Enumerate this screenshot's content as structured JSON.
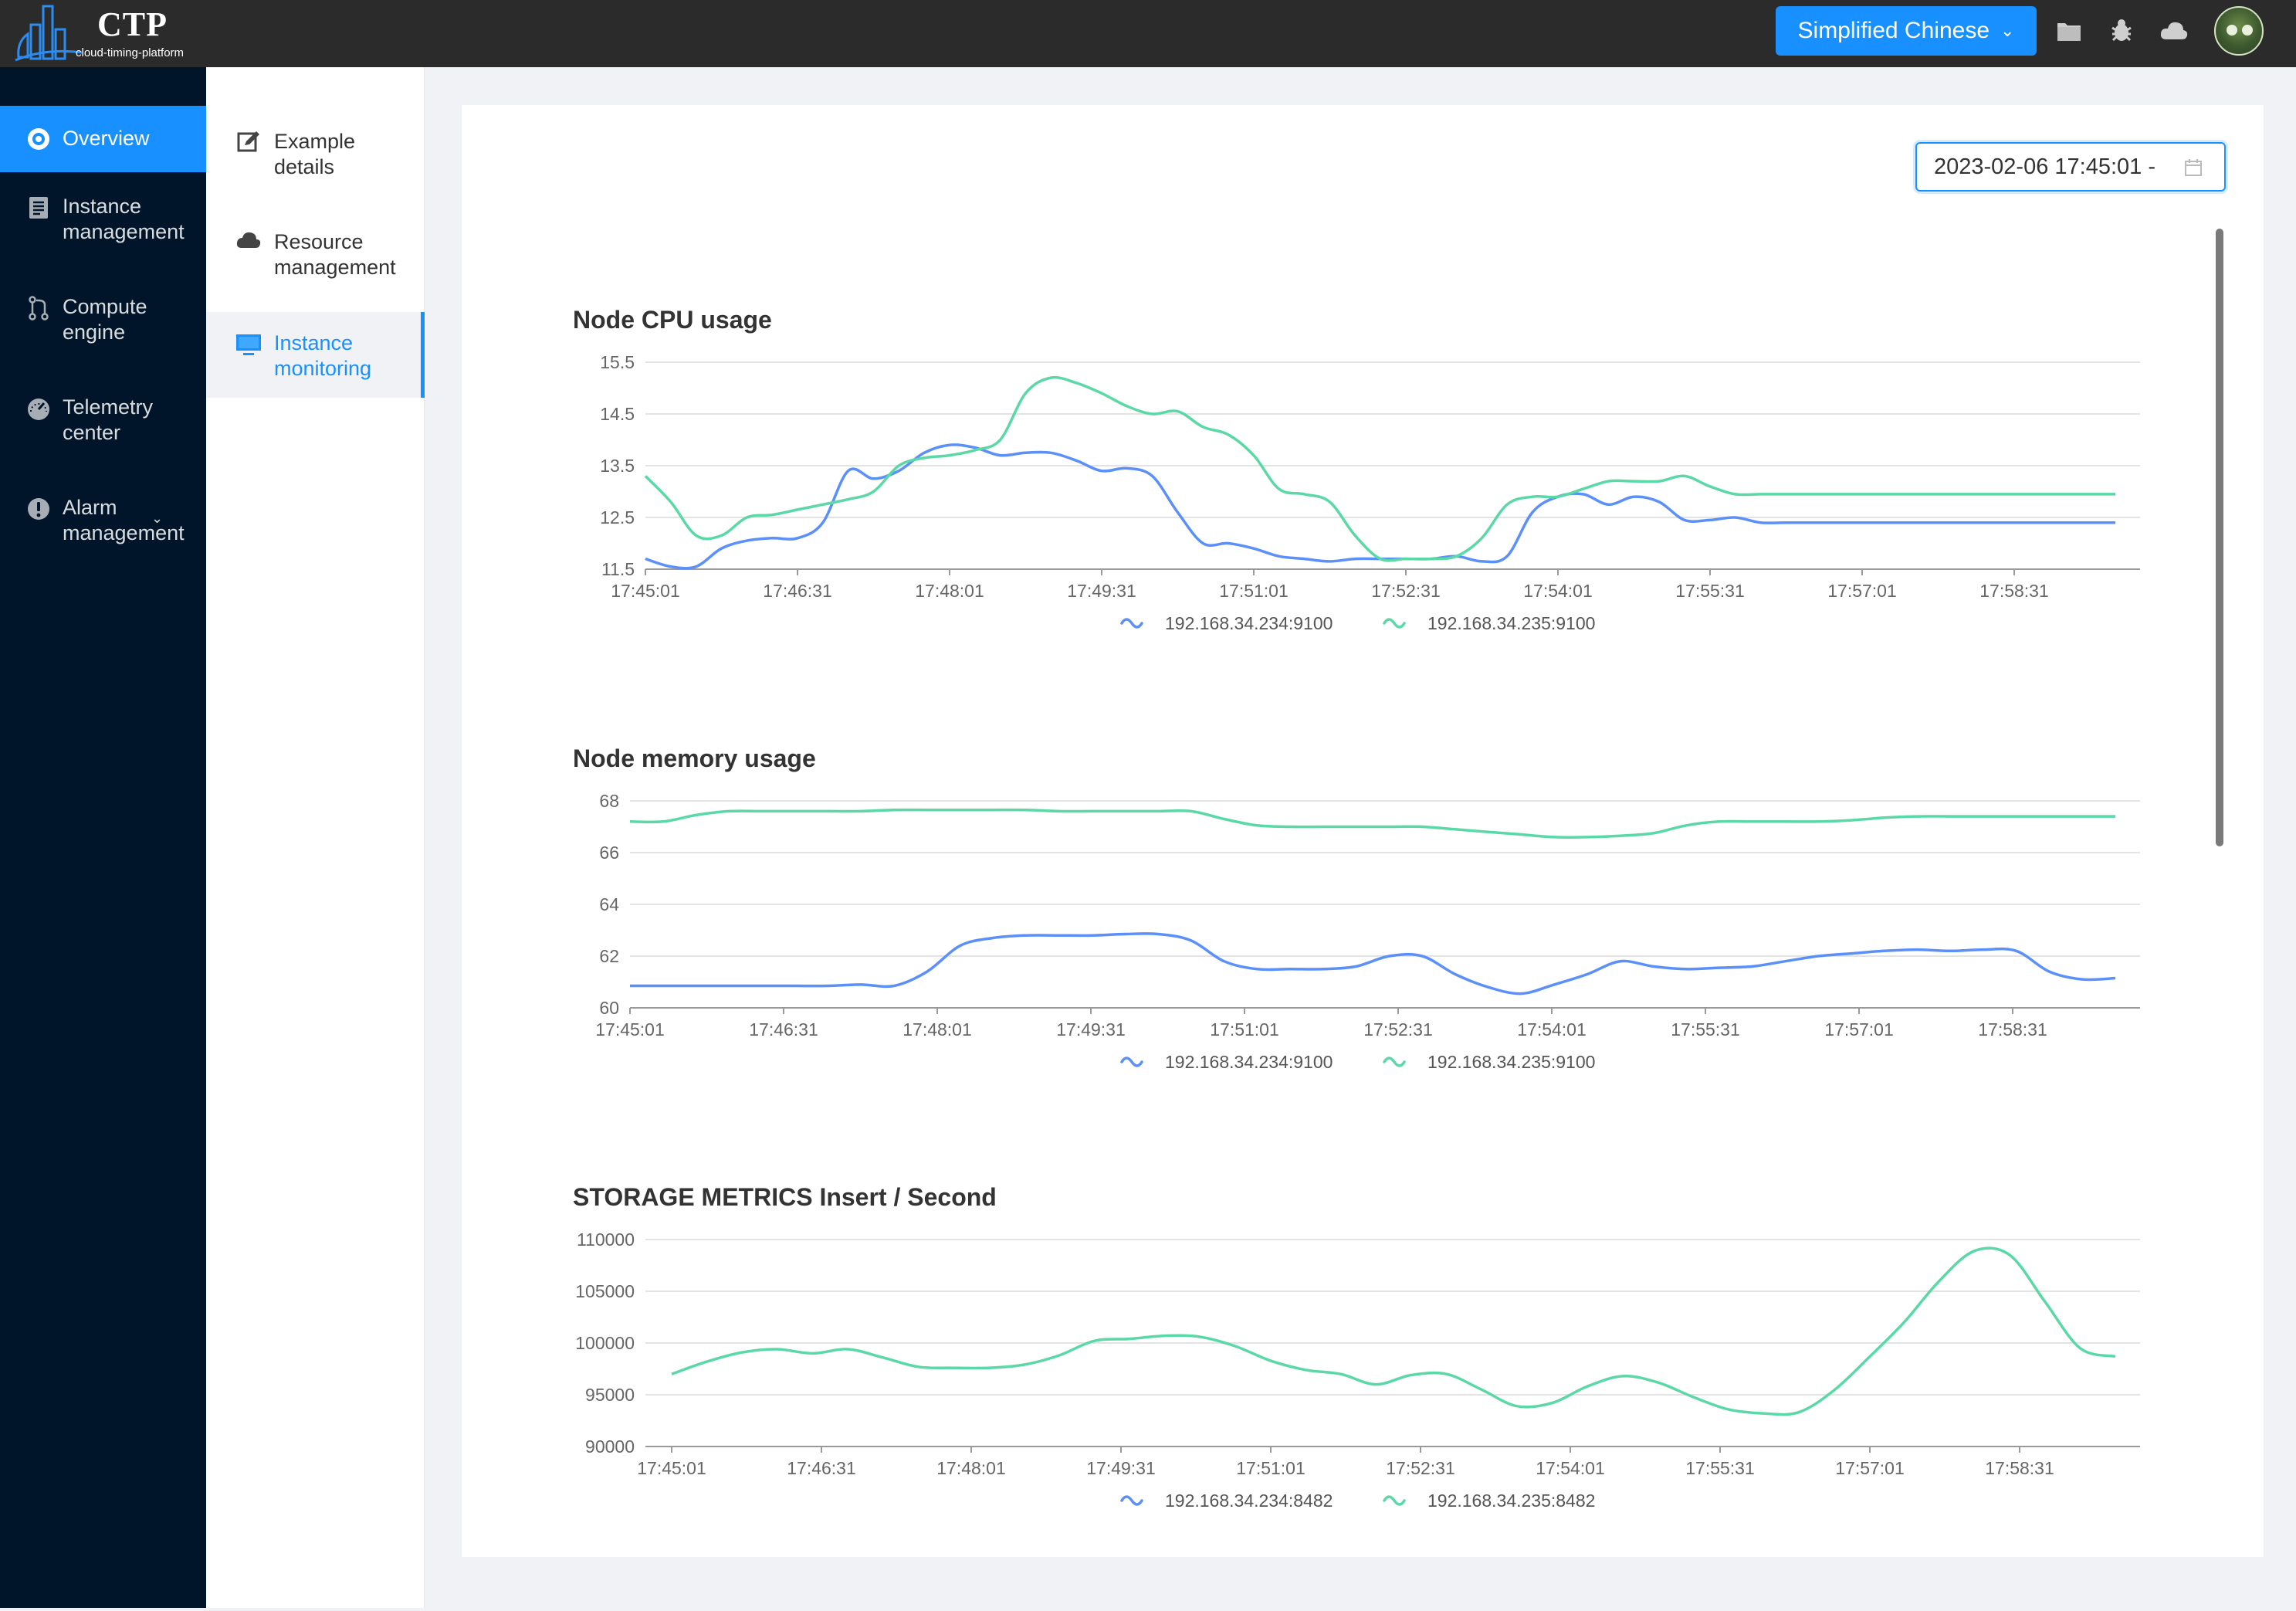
{
  "app": {
    "logo_title": "CTP",
    "logo_subtitle": "cloud-timing-platform",
    "language_button": "Simplified Chinese",
    "header_icons": [
      "folder-icon",
      "bug-icon",
      "cloud-icon"
    ]
  },
  "sidebar": {
    "items": [
      {
        "label": "Overview",
        "icon": "dashboard-icon",
        "active": true
      },
      {
        "label": "Instance\nmanagement",
        "icon": "document-icon"
      },
      {
        "label": "Compute\nengine",
        "icon": "branch-icon"
      },
      {
        "label": "Telemetry\ncenter",
        "icon": "gauge-icon"
      },
      {
        "label": "Alarm\nmanagement",
        "icon": "alert-icon",
        "expandable": true
      }
    ]
  },
  "submenu": {
    "items": [
      {
        "label": "Example\ndetails",
        "icon": "edit-icon"
      },
      {
        "label": "Resource\nmanagement",
        "icon": "cloud-icon"
      },
      {
        "label": "Instance\nmonitoring",
        "icon": "monitor-icon",
        "active": true
      }
    ]
  },
  "date_range": {
    "value": "2023-02-06 17:45:01 -"
  },
  "colors": {
    "series_a": "#5b8ff9",
    "series_b": "#5ad8a6",
    "accent": "#1890ff"
  },
  "chart_data": [
    {
      "type": "line",
      "title": "Node CPU usage",
      "x_ticks": [
        "17:45:01",
        "17:46:31",
        "17:48:01",
        "17:49:31",
        "17:51:01",
        "17:52:31",
        "17:54:01",
        "17:55:31",
        "17:57:01",
        "17:58:31"
      ],
      "ylim": [
        11.5,
        15.5
      ],
      "y_ticks": [
        "11.5",
        "12.5",
        "13.5",
        "14.5",
        "15.5"
      ],
      "x": [
        0,
        2,
        4,
        6,
        8,
        10,
        12,
        14,
        16,
        18,
        20,
        22,
        24,
        26,
        28,
        30,
        32,
        34,
        36,
        38,
        40,
        42,
        44,
        46,
        48,
        50,
        52,
        54,
        56,
        58,
        60,
        62,
        64,
        66,
        68,
        70,
        72,
        74,
        76,
        78,
        80,
        82,
        84,
        86,
        88,
        90,
        92,
        94,
        96,
        98,
        100,
        102,
        104,
        106,
        108,
        110,
        112,
        114,
        118
      ],
      "series": [
        {
          "name": "192.168.34.234:9100",
          "values": [
            11.7,
            11.55,
            11.55,
            11.9,
            12.05,
            12.1,
            12.1,
            12.4,
            13.4,
            13.25,
            13.4,
            13.75,
            13.9,
            13.85,
            13.7,
            13.75,
            13.75,
            13.6,
            13.4,
            13.45,
            13.3,
            12.6,
            12.0,
            12.0,
            11.9,
            11.75,
            11.7,
            11.65,
            11.7,
            11.7,
            11.7,
            11.7,
            11.75,
            11.65,
            11.75,
            12.6,
            12.9,
            12.95,
            12.75,
            12.9,
            12.8,
            12.45,
            12.45,
            12.5,
            12.4,
            12.4,
            12.4,
            12.4,
            12.4,
            12.4,
            12.4,
            12.4,
            12.4,
            12.4,
            12.4,
            12.4,
            12.4,
            12.4,
            12.4
          ]
        },
        {
          "name": "192.168.34.235:9100",
          "values": [
            13.3,
            12.8,
            12.15,
            12.15,
            12.5,
            12.55,
            12.65,
            12.75,
            12.85,
            13.0,
            13.5,
            13.65,
            13.7,
            13.8,
            14.0,
            14.9,
            15.2,
            15.1,
            14.9,
            14.65,
            14.5,
            14.55,
            14.25,
            14.1,
            13.7,
            13.05,
            12.95,
            12.8,
            12.15,
            11.7,
            11.7,
            11.7,
            11.75,
            12.1,
            12.75,
            12.9,
            12.9,
            13.05,
            13.2,
            13.2,
            13.2,
            13.3,
            13.1,
            12.95,
            12.95,
            12.95,
            12.95,
            12.95,
            12.95,
            12.95,
            12.95,
            12.95,
            12.95,
            12.95,
            12.95,
            12.95,
            12.95,
            12.95,
            12.95
          ]
        }
      ]
    },
    {
      "type": "line",
      "title": "Node memory usage",
      "x_ticks": [
        "17:45:01",
        "17:46:31",
        "17:48:01",
        "17:49:31",
        "17:51:01",
        "17:52:31",
        "17:54:01",
        "17:55:31",
        "17:57:01",
        "17:58:31"
      ],
      "ylim": [
        60,
        68
      ],
      "y_ticks": [
        "60",
        "62",
        "64",
        "66",
        "68"
      ],
      "series": [
        {
          "name": "192.168.34.234:9100",
          "values": [
            60.85,
            60.85,
            60.85,
            60.85,
            60.85,
            60.85,
            60.85,
            60.9,
            60.85,
            61.4,
            62.4,
            62.7,
            62.8,
            62.8,
            62.8,
            62.85,
            62.85,
            62.6,
            61.8,
            61.5,
            61.5,
            61.5,
            61.6,
            62.0,
            62.0,
            61.3,
            60.8,
            60.55,
            60.9,
            61.3,
            61.8,
            61.6,
            61.5,
            61.55,
            61.6,
            61.8,
            62.0,
            62.1,
            62.2,
            62.25,
            62.2,
            62.25,
            62.2,
            61.4,
            61.1,
            61.15
          ]
        },
        {
          "name": "192.168.34.235:9100",
          "values": [
            67.2,
            67.2,
            67.45,
            67.6,
            67.6,
            67.6,
            67.6,
            67.6,
            67.65,
            67.65,
            67.65,
            67.65,
            67.65,
            67.6,
            67.6,
            67.6,
            67.6,
            67.6,
            67.3,
            67.05,
            67.0,
            67.0,
            67.0,
            67.0,
            67.0,
            66.9,
            66.8,
            66.7,
            66.6,
            66.6,
            66.65,
            66.75,
            67.05,
            67.2,
            67.2,
            67.2,
            67.2,
            67.25,
            67.35,
            67.4,
            67.4,
            67.4,
            67.4,
            67.4,
            67.4,
            67.4
          ]
        }
      ]
    },
    {
      "type": "line",
      "title": "STORAGE METRICS Insert / Second",
      "x_ticks": [
        "17:45:01",
        "17:46:31",
        "17:48:01",
        "17:49:31",
        "17:51:01",
        "17:52:31",
        "17:54:01",
        "17:55:31",
        "17:57:01",
        "17:58:31"
      ],
      "ylim": [
        90000,
        110000
      ],
      "y_ticks": [
        "90000",
        "95000",
        "100000",
        "105000",
        "110000"
      ],
      "series": [
        {
          "name": "192.168.34.234:8482",
          "values": []
        },
        {
          "name": "192.168.34.235:8482",
          "values": [
            97000,
            98200,
            99100,
            99400,
            99000,
            99400,
            98600,
            97700,
            97600,
            97600,
            97900,
            98800,
            100200,
            100400,
            100700,
            100600,
            99700,
            98300,
            97400,
            97000,
            96000,
            96900,
            97000,
            95500,
            93900,
            94200,
            95800,
            96800,
            96200,
            94800,
            93600,
            93200,
            93300,
            95400,
            98600,
            102000,
            106000,
            108900,
            108500,
            104000,
            99500,
            98700
          ]
        }
      ]
    }
  ]
}
